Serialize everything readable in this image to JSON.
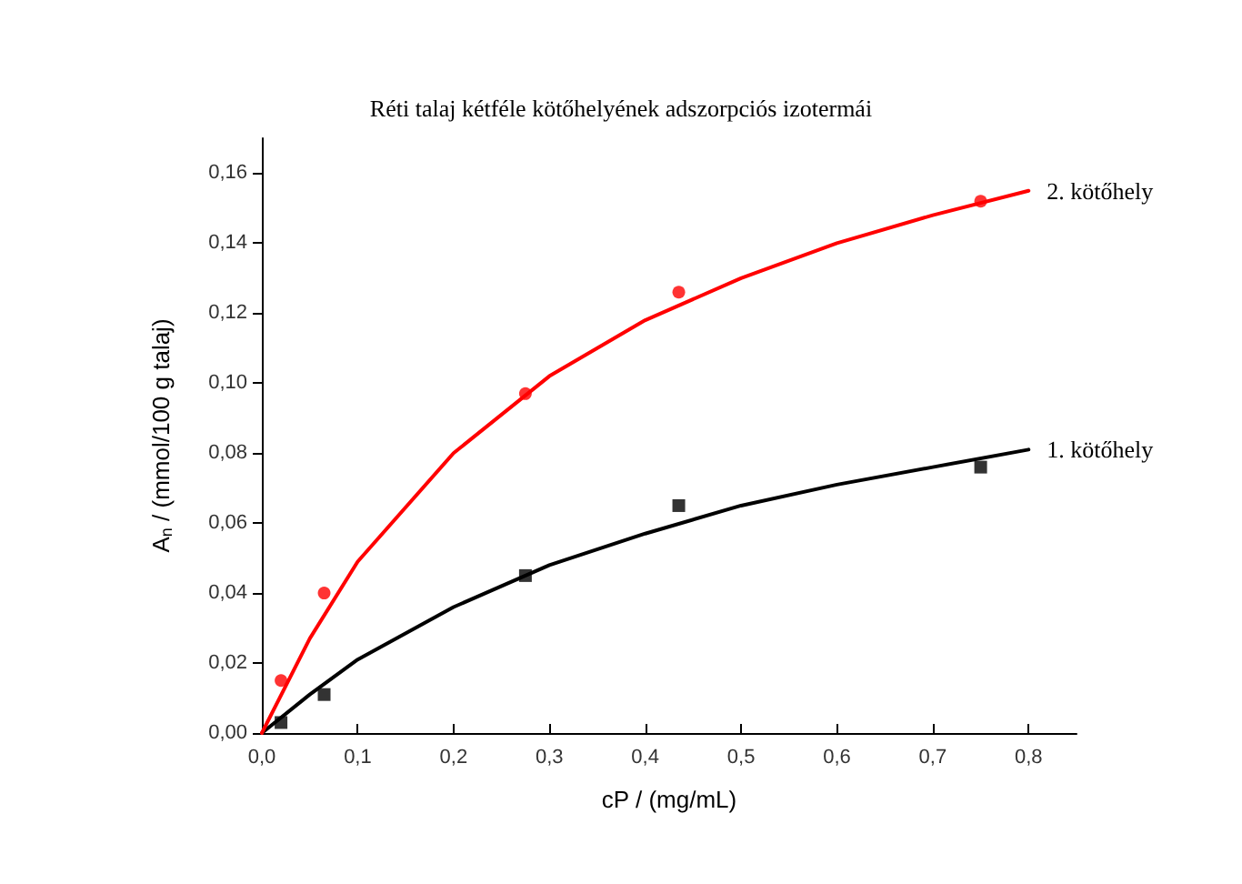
{
  "chart_data": {
    "type": "scatter",
    "title": "Réti talaj kétféle kötőhelyének adszorpciós izotermái",
    "xlabel": "cP / (mg/mL)",
    "ylabel": "A$_{n}$ / (mmol/100 g talaj)",
    "xlim": [
      0,
      0.85
    ],
    "ylim": [
      0,
      0.17
    ],
    "xticks": [
      {
        "value": 0,
        "label": "0,0"
      },
      {
        "value": 0.1,
        "label": "0,1"
      },
      {
        "value": 0.2,
        "label": "0,2"
      },
      {
        "value": 0.3,
        "label": "0,3"
      },
      {
        "value": 0.4,
        "label": "0,4"
      },
      {
        "value": 0.5,
        "label": "0,5"
      },
      {
        "value": 0.6,
        "label": "0,6"
      },
      {
        "value": 0.7,
        "label": "0,7"
      },
      {
        "value": 0.8,
        "label": "0,8"
      }
    ],
    "yticks": [
      {
        "value": 0,
        "label": "0,00"
      },
      {
        "value": 0.02,
        "label": "0,02"
      },
      {
        "value": 0.04,
        "label": "0,04"
      },
      {
        "value": 0.06,
        "label": "0,06"
      },
      {
        "value": 0.08,
        "label": "0,08"
      },
      {
        "value": 0.1,
        "label": "0,10"
      },
      {
        "value": 0.12,
        "label": "0,12"
      },
      {
        "value": 0.14,
        "label": "0,14"
      },
      {
        "value": 0.16,
        "label": "0,16"
      }
    ],
    "grid": false,
    "legend": false,
    "series": [
      {
        "type": "line",
        "name": "1. kötőhely",
        "color": "#000000",
        "marker": "none",
        "x": [
          0,
          0.05,
          0.1,
          0.2,
          0.3,
          0.4,
          0.5,
          0.6,
          0.7,
          0.8
        ],
        "values": [
          0,
          0.011,
          0.021,
          0.036,
          0.048,
          0.057,
          0.065,
          0.071,
          0.076,
          0.081
        ]
      },
      {
        "type": "line",
        "name": "2. kötőhely",
        "color": "#ff0000",
        "marker": "none",
        "x": [
          0,
          0.05,
          0.1,
          0.2,
          0.3,
          0.4,
          0.5,
          0.6,
          0.7,
          0.8
        ],
        "values": [
          0,
          0.027,
          0.049,
          0.08,
          0.102,
          0.118,
          0.13,
          0.14,
          0.148,
          0.155
        ]
      },
      {
        "color": "#000000",
        "marker": "square",
        "x": [
          0.02,
          0.065,
          0.275,
          0.435,
          0.75
        ],
        "values": [
          0.003,
          0.011,
          0.045,
          0.065,
          0.076
        ]
      },
      {
        "color": "#ff0000",
        "marker": "circle",
        "x": [
          0.02,
          0.065,
          0.275,
          0.435,
          0.75
        ],
        "values": [
          0.015,
          0.04,
          0.097,
          0.126,
          0.152
        ]
      }
    ]
  }
}
